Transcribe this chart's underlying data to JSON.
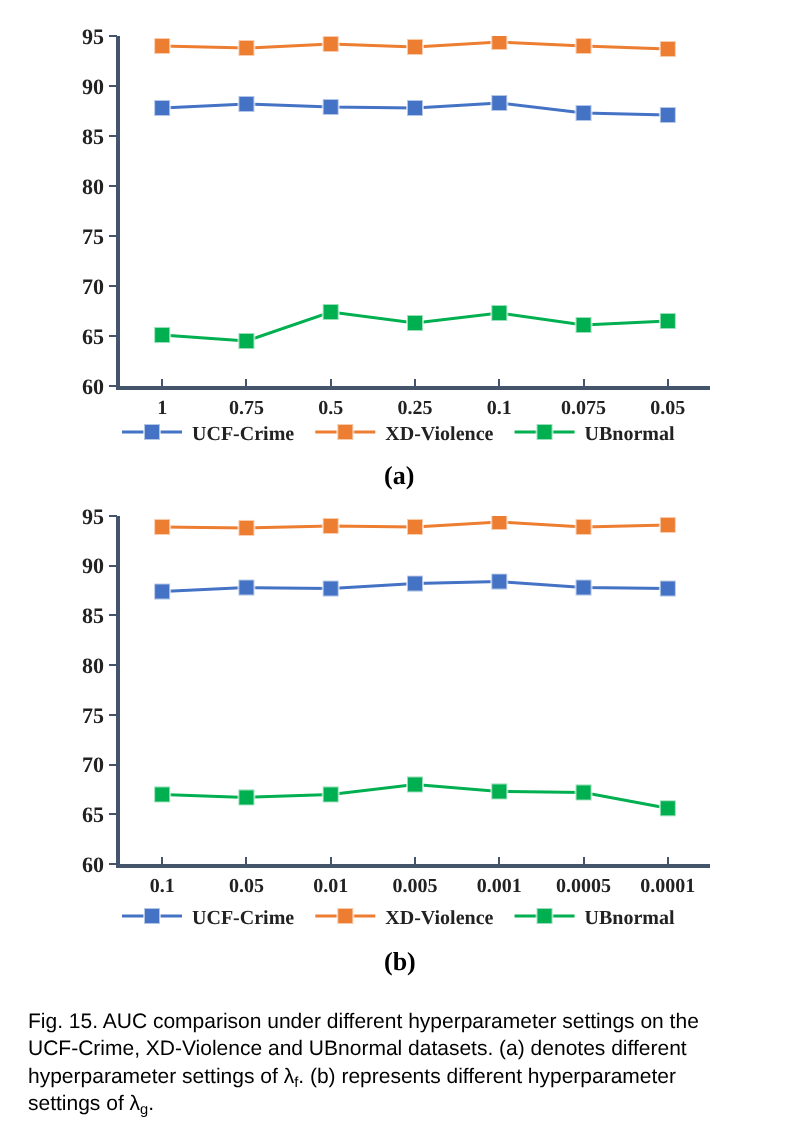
{
  "chart_data": [
    {
      "type": "line",
      "xlabel": "(a)",
      "categories": [
        "1",
        "0.75",
        "0.5",
        "0.25",
        "0.1",
        "0.075",
        "0.05"
      ],
      "series": [
        {
          "name": "UCF-Crime",
          "color": "#4472c4",
          "values": [
            87.8,
            88.2,
            87.9,
            87.8,
            88.3,
            87.3,
            87.1
          ]
        },
        {
          "name": "XD-Violence",
          "color": "#ed7d31",
          "values": [
            94.0,
            93.8,
            94.2,
            93.9,
            94.4,
            94.0,
            93.7
          ]
        },
        {
          "name": "UBnormal",
          "color": "#00b050",
          "values": [
            65.1,
            64.5,
            67.4,
            66.3,
            67.3,
            66.1,
            66.5
          ]
        }
      ],
      "ylim": [
        60,
        95
      ],
      "yticks": [
        60,
        65,
        70,
        75,
        80,
        85,
        90,
        95
      ],
      "legend": "bottom",
      "marker": "square",
      "line_style": "solid"
    },
    {
      "type": "line",
      "xlabel": "(b)",
      "categories": [
        "0.1",
        "0.05",
        "0.01",
        "0.005",
        "0.001",
        "0.0005",
        "0.0001"
      ],
      "series": [
        {
          "name": "UCF-Crime",
          "color": "#4472c4",
          "values": [
            87.4,
            87.8,
            87.7,
            88.2,
            88.4,
            87.8,
            87.7
          ]
        },
        {
          "name": "XD-Violence",
          "color": "#ed7d31",
          "values": [
            93.9,
            93.8,
            94.0,
            93.9,
            94.4,
            93.9,
            94.1
          ]
        },
        {
          "name": "UBnormal",
          "color": "#00b050",
          "values": [
            67.0,
            66.7,
            67.0,
            68.0,
            67.3,
            67.2,
            65.6
          ]
        }
      ],
      "ylim": [
        60,
        95
      ],
      "yticks": [
        60,
        65,
        70,
        75,
        80,
        85,
        90,
        95
      ],
      "legend": "bottom",
      "marker": "square",
      "line_style": "solid",
      "annotations": [
        "Fig. 15. AUC comparison under different hyperparameter settings on the UCF-Crime, XD-Violence and UBnormal datasets. (a) denotes different hyperparameter settings of λ$_{f}$. (b) represents different hyperparameter settings of λ$_{g}$."
      ]
    }
  ]
}
